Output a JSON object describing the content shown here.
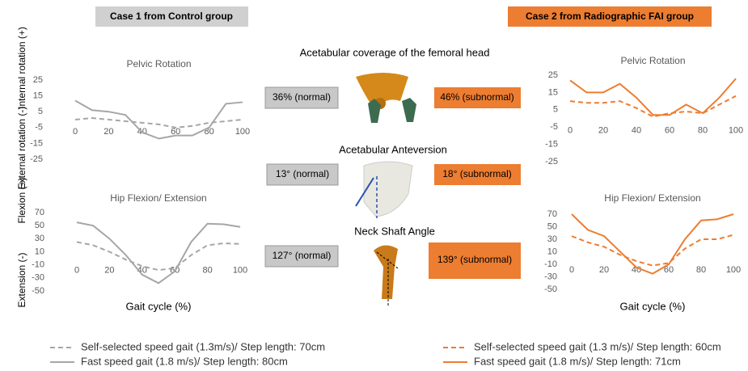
{
  "headers": {
    "left": "Case 1 from Control group",
    "right": "Case 2 from Radiographic FAI group"
  },
  "measures": [
    {
      "title": "Acetabular coverage of the femoral head",
      "control": "36% (normal)",
      "fai": "46% (subnormal)"
    },
    {
      "title": "Acetabular Anteversion",
      "control": "13° (normal)",
      "fai": "18° (subnormal)"
    },
    {
      "title": "Neck Shaft Angle",
      "control": "127° (normal)",
      "fai": "139° (subnormal)"
    }
  ],
  "chart_data": [
    {
      "type": "line",
      "title": "Pelvic Rotation",
      "y_label_pos": "Internal rotation (+)",
      "y_label_neg": "External rotation (-)",
      "x": [
        0,
        10,
        20,
        30,
        40,
        50,
        60,
        70,
        80,
        90,
        100
      ],
      "xlim": [
        0,
        100
      ],
      "xticks": [
        0,
        20,
        40,
        60,
        80,
        100
      ],
      "ylim": [
        -25,
        25
      ],
      "yticks": [
        25,
        15,
        5,
        -5,
        -15,
        -25
      ],
      "series": [
        {
          "color": "#a6a6a6",
          "dash": true,
          "values": [
            0,
            1,
            0,
            -1,
            -2,
            -3,
            -5,
            -4,
            -2,
            -1,
            0
          ]
        },
        {
          "color": "#a6a6a6",
          "dash": false,
          "values": [
            12,
            6,
            5,
            3,
            -8,
            -12,
            -10,
            -10,
            -5,
            10,
            11
          ]
        }
      ]
    },
    {
      "type": "line",
      "title": "Hip Flexion/ Extension",
      "x_label": "Gait cycle (%)",
      "y_label_pos": "Flexion (+)",
      "y_label_neg": "Extension (-)",
      "x": [
        0,
        10,
        20,
        30,
        40,
        50,
        60,
        70,
        80,
        90,
        100
      ],
      "xlim": [
        0,
        100
      ],
      "xticks": [
        0,
        20,
        40,
        60,
        80,
        100
      ],
      "ylim": [
        -50,
        70
      ],
      "yticks": [
        70,
        50,
        30,
        10,
        -10,
        -30,
        -50
      ],
      "series": [
        {
          "name": "Self-selected speed gait (1.3m/s)/ Step length: 70cm",
          "color": "#a6a6a6",
          "dash": true,
          "values": [
            25,
            20,
            10,
            -2,
            -12,
            -18,
            -15,
            5,
            20,
            23,
            22
          ]
        },
        {
          "name": "Fast speed gait (1.8 m/s)/ Step length: 80cm",
          "color": "#a6a6a6",
          "dash": false,
          "values": [
            55,
            50,
            30,
            5,
            -25,
            -38,
            -20,
            25,
            53,
            52,
            48
          ]
        }
      ]
    },
    {
      "type": "line",
      "title": "Pelvic Rotation",
      "x": [
        0,
        10,
        20,
        30,
        40,
        50,
        60,
        70,
        80,
        90,
        100
      ],
      "xlim": [
        0,
        100
      ],
      "xticks": [
        0,
        20,
        40,
        60,
        80,
        100
      ],
      "ylim": [
        -25,
        25
      ],
      "yticks": [
        25,
        15,
        5,
        -5,
        -15,
        -25
      ],
      "series": [
        {
          "color": "#ed7d31",
          "dash": true,
          "values": [
            10,
            9,
            9,
            10,
            6,
            1,
            3,
            4,
            3,
            8,
            13
          ]
        },
        {
          "color": "#ed7d31",
          "dash": false,
          "values": [
            22,
            15,
            15,
            20,
            12,
            2,
            2,
            8,
            3,
            12,
            23
          ]
        }
      ]
    },
    {
      "type": "line",
      "title": "Hip Flexion/ Extension",
      "x_label": "Gait cycle (%)",
      "x": [
        0,
        10,
        20,
        30,
        40,
        50,
        60,
        70,
        80,
        90,
        100
      ],
      "xlim": [
        0,
        100
      ],
      "xticks": [
        0,
        20,
        40,
        60,
        80,
        100
      ],
      "ylim": [
        -50,
        70
      ],
      "yticks": [
        70,
        50,
        30,
        10,
        -10,
        -30,
        -50
      ],
      "series": [
        {
          "name": "Self-selected speed gait (1.3 m/s)/ Step length: 60cm",
          "color": "#ed7d31",
          "dash": true,
          "values": [
            35,
            25,
            18,
            5,
            -5,
            -12,
            -8,
            15,
            30,
            30,
            37
          ]
        },
        {
          "name": "Fast speed gait (1.8 m/s)/ Step length: 71cm",
          "color": "#ed7d31",
          "dash": false,
          "values": [
            70,
            45,
            35,
            10,
            -15,
            -25,
            -10,
            30,
            60,
            62,
            70
          ]
        }
      ]
    }
  ]
}
